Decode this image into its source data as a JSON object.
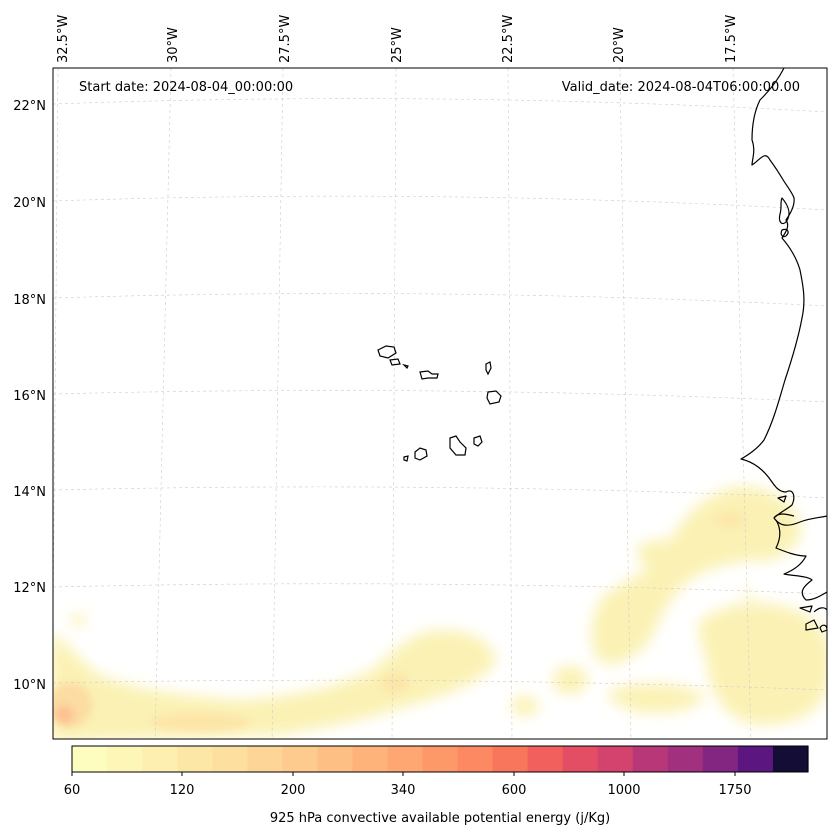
{
  "header": {
    "start_date": "Start date: 2024-08-04_00:00:00",
    "valid_date": "Valid_date: 2024-08-04T06:00:00.00"
  },
  "axes": {
    "lon_labels": [
      "32.5°W",
      "30°W",
      "27.5°W",
      "25°W",
      "22.5°W",
      "20°W",
      "17.5°W"
    ],
    "lat_labels": [
      "22°N",
      "20°N",
      "18°N",
      "16°N",
      "14°N",
      "12°N",
      "10°N"
    ]
  },
  "colorbar": {
    "tick_labels": [
      "60",
      "120",
      "200",
      "340",
      "600",
      "1000",
      "1750"
    ],
    "label": "925 hPa convective available potential energy (j/Kg)",
    "colors": [
      "#fcfdbf",
      "#fdf6b7",
      "#fdefaf",
      "#fde7a7",
      "#fde09f",
      "#fdd697",
      "#fdcb8e",
      "#febf84",
      "#feb37b",
      "#fea772",
      "#fd9969",
      "#fc8961",
      "#f7765c",
      "#f1605d",
      "#e34e65",
      "#d3436e",
      "#b73779",
      "#a1307e",
      "#832681",
      "#5c167f",
      "#140e36"
    ]
  },
  "legend_colors": {
    "land_outline": "#000000",
    "grid": "#cccccc",
    "cape_low": "#fbf1b0",
    "cape_mid": "#fcd9a0",
    "cape_high": "#fbc190"
  }
}
